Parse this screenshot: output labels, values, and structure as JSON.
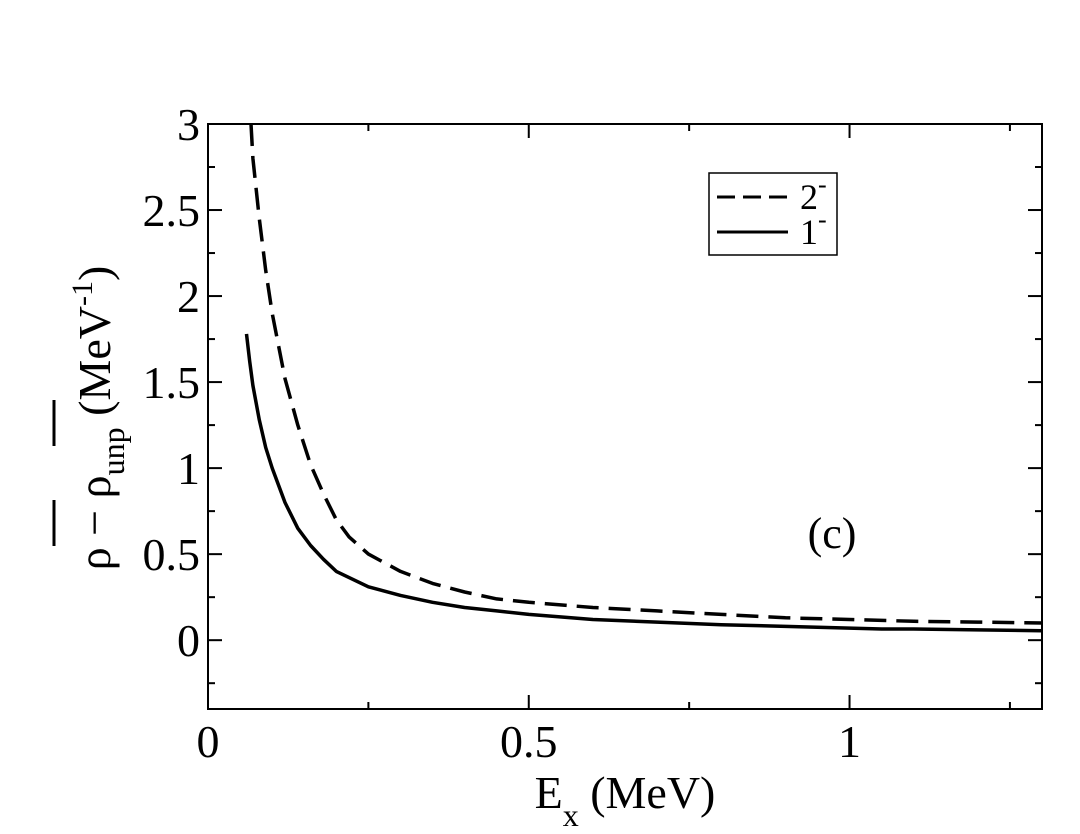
{
  "chart_data": {
    "type": "line",
    "xlabel": {
      "main": "E",
      "sub": "x",
      "unit": " (MeV)"
    },
    "ylabel": {
      "rho": "ρ",
      "minus": " − ",
      "rho2": "ρ",
      "sub": "unp",
      "unit_open": " (MeV",
      "unit_sup": "-1",
      "unit_close": ")"
    },
    "xlim": [
      0,
      1.3
    ],
    "ylim": [
      -0.4,
      3
    ],
    "xticks": [
      {
        "value": 0,
        "label": "0"
      },
      {
        "value": 0.5,
        "label": "0.5"
      },
      {
        "value": 1,
        "label": "1"
      }
    ],
    "yticks": [
      {
        "value": 0,
        "label": "0"
      },
      {
        "value": 0.5,
        "label": "0.5"
      },
      {
        "value": 1,
        "label": "1"
      },
      {
        "value": 1.5,
        "label": "1.5"
      },
      {
        "value": 2,
        "label": "2"
      },
      {
        "value": 2.5,
        "label": "2.5"
      },
      {
        "value": 3,
        "label": "3"
      }
    ],
    "x_minor_step": 0.25,
    "y_minor_step": 0.25,
    "grid": false,
    "legend_position": "top-right",
    "annotation": "(c)",
    "series": [
      {
        "name": "2",
        "name_sup": "-",
        "style": "dashed",
        "color": "#000000",
        "x": [
          0.067,
          0.07,
          0.08,
          0.09,
          0.1,
          0.12,
          0.14,
          0.16,
          0.18,
          0.2,
          0.22,
          0.25,
          0.3,
          0.35,
          0.4,
          0.45,
          0.5,
          0.6,
          0.7,
          0.8,
          0.9,
          1.0,
          1.1,
          1.2,
          1.3
        ],
        "y": [
          3.0,
          2.8,
          2.45,
          2.15,
          1.9,
          1.52,
          1.25,
          1.02,
          0.85,
          0.7,
          0.6,
          0.5,
          0.4,
          0.33,
          0.28,
          0.24,
          0.22,
          0.19,
          0.17,
          0.15,
          0.13,
          0.12,
          0.11,
          0.105,
          0.1
        ]
      },
      {
        "name": "1",
        "name_sup": "-",
        "style": "solid",
        "color": "#000000",
        "x": [
          0.06,
          0.065,
          0.07,
          0.08,
          0.09,
          0.1,
          0.12,
          0.14,
          0.16,
          0.18,
          0.2,
          0.25,
          0.3,
          0.35,
          0.4,
          0.45,
          0.5,
          0.6,
          0.7,
          0.8,
          0.9,
          1.0,
          1.05,
          1.1,
          1.2,
          1.3
        ],
        "y": [
          1.78,
          1.62,
          1.48,
          1.28,
          1.12,
          1.0,
          0.8,
          0.65,
          0.55,
          0.47,
          0.4,
          0.31,
          0.26,
          0.22,
          0.19,
          0.17,
          0.15,
          0.12,
          0.105,
          0.09,
          0.08,
          0.07,
          0.065,
          0.065,
          0.06,
          0.055
        ]
      }
    ]
  }
}
